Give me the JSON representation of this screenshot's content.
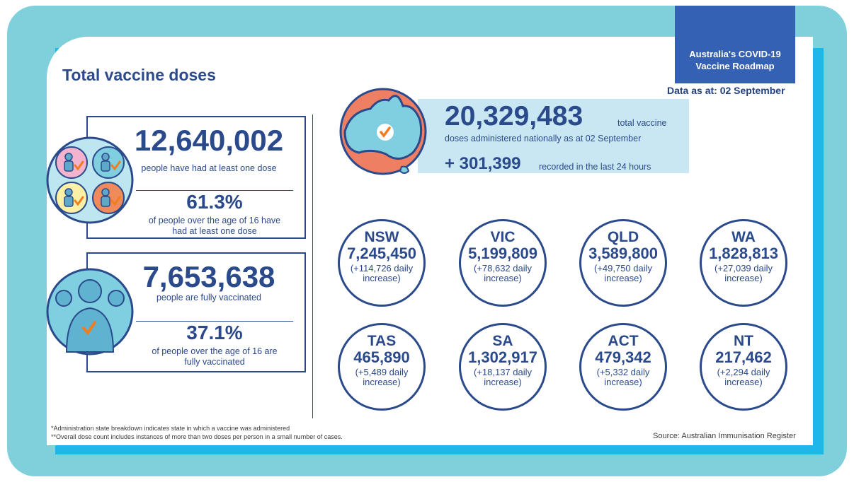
{
  "header": {
    "title": "Total vaccine doses",
    "roadmap_line1": "Australia's COVID-19",
    "roadmap_line2": "Vaccine Roadmap",
    "data_as_at": "Data as at: 02 September"
  },
  "first_dose": {
    "count": "12,640,002",
    "count_label": "people have had at least one dose",
    "percent": "61.3%",
    "percent_label_1": "of people over the age of 16 have",
    "percent_label_2": "had at least one dose"
  },
  "fully_vaccinated": {
    "count": "7,653,638",
    "count_label": "people are fully vaccinated",
    "percent": "37.1%",
    "percent_label_1": "of people over the age of 16 are",
    "percent_label_2": "fully vaccinated"
  },
  "national": {
    "total": "20,329,483",
    "total_suffix": "total vaccine",
    "total_label": "doses administered nationally as at 02 September",
    "daily": "+ 301,399",
    "daily_label": "recorded in the last 24 hours"
  },
  "states": [
    {
      "name": "NSW",
      "doses": "7,245,450",
      "inc1": "(+114,726 daily",
      "inc2": "increase)"
    },
    {
      "name": "VIC",
      "doses": "5,199,809",
      "inc1": "(+78,632 daily",
      "inc2": "increase)"
    },
    {
      "name": "QLD",
      "doses": "3,589,800",
      "inc1": "(+49,750 daily",
      "inc2": "increase)"
    },
    {
      "name": "WA",
      "doses": "1,828,813",
      "inc1": "(+27,039 daily",
      "inc2": "increase)"
    },
    {
      "name": "TAS",
      "doses": "465,890",
      "inc1": "(+5,489 daily",
      "inc2": "increase)"
    },
    {
      "name": "SA",
      "doses": "1,302,917",
      "inc1": "(+18,137 daily",
      "inc2": "increase)"
    },
    {
      "name": "ACT",
      "doses": "479,342",
      "inc1": "(+5,332 daily",
      "inc2": "increase)"
    },
    {
      "name": "NT",
      "doses": "217,462",
      "inc1": "(+2,294 daily",
      "inc2": "increase)"
    }
  ],
  "footer": {
    "note1": "*Administration state breakdown indicates state in which a vaccine was administered",
    "note2": "**Overall dose count includes instances of more than two doses per person in a small number of cases.",
    "source": "Source: Australian Immunisation Register"
  },
  "colors": {
    "navy": "#2b4a8c",
    "frame": "#7fd0db",
    "accent_blue": "#1fb7ea",
    "roadmap_bg": "#3461b3",
    "panel": "#c9e7f2",
    "map_orange": "#ef7f63",
    "check_orange": "#f07d1e"
  }
}
